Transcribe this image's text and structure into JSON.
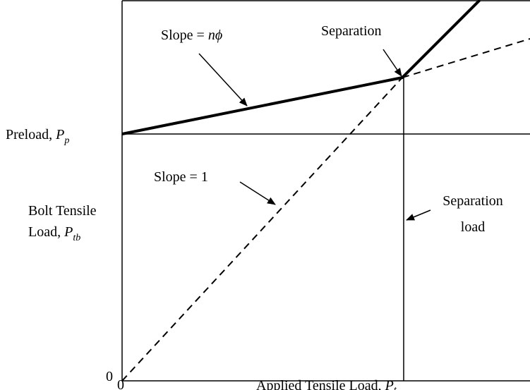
{
  "labels": {
    "slope_nphi": {
      "text": "Slope = ",
      "symbol": "nϕ"
    },
    "separation": "Separation",
    "preload": {
      "text": "Preload, ",
      "symbol": "P",
      "subscript": "p"
    },
    "slope_one": "Slope = 1",
    "bolt_load": {
      "line1": "Bolt Tensile",
      "text": "Load, ",
      "symbol": "P",
      "subscript": "tb"
    },
    "separation_load": {
      "line1": "Separation",
      "line2": "load"
    },
    "origin_y": "0",
    "origin_x": "0",
    "x_axis": {
      "text": "Applied Tensile Load, ",
      "symbol": "P",
      "subscript": "t"
    }
  }
}
